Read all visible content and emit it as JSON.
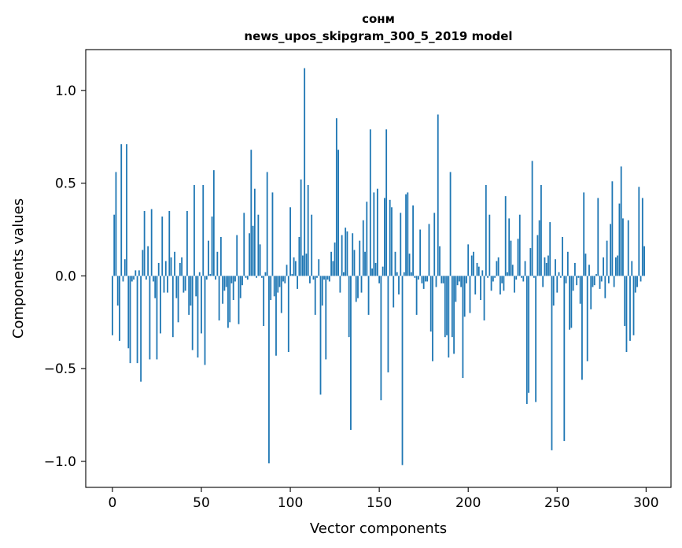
{
  "chart_data": {
    "type": "bar",
    "title": "сонм",
    "subtitle": "news_upos_skipgram_300_5_2019 model",
    "xlabel": "Vector components",
    "ylabel": "Components values",
    "xlim": [
      -15,
      314
    ],
    "ylim": [
      -1.14,
      1.22
    ],
    "xticks": [
      0,
      50,
      100,
      150,
      200,
      250,
      300
    ],
    "yticks": [
      -1.0,
      -0.5,
      0.0,
      0.5,
      1.0
    ],
    "ytick_labels": [
      "−1.0",
      "−0.5",
      "0.0",
      "0.5",
      "1.0"
    ],
    "grid": false,
    "color": "#1f77b4",
    "values": [
      -0.32,
      0.33,
      0.56,
      -0.16,
      -0.35,
      0.71,
      -0.03,
      0.09,
      0.71,
      -0.39,
      -0.47,
      -0.03,
      -0.02,
      0.03,
      -0.47,
      0.03,
      -0.57,
      0.14,
      0.35,
      -0.02,
      0.16,
      -0.45,
      0.36,
      -0.03,
      -0.12,
      -0.45,
      0.07,
      -0.31,
      0.32,
      -0.09,
      0.08,
      -0.09,
      0.35,
      0.1,
      -0.33,
      0.13,
      -0.12,
      -0.25,
      0.07,
      0.1,
      -0.09,
      -0.08,
      0.35,
      -0.21,
      -0.16,
      -0.4,
      0.49,
      -0.11,
      -0.44,
      0.02,
      -0.31,
      0.49,
      -0.48,
      -0.02,
      0.19,
      0.01,
      0.32,
      0.57,
      -0.02,
      0.13,
      -0.24,
      0.21,
      -0.15,
      -0.08,
      -0.06,
      -0.28,
      -0.25,
      -0.04,
      -0.13,
      -0.03,
      0.22,
      -0.26,
      -0.12,
      -0.05,
      0.34,
      -0.01,
      -0.02,
      0.23,
      0.68,
      0.27,
      0.47,
      -0.01,
      0.33,
      0.17,
      -0.01,
      -0.27,
      0.02,
      0.56,
      -1.01,
      -0.13,
      0.45,
      -0.11,
      -0.43,
      -0.09,
      -0.06,
      -0.2,
      -0.03,
      -0.04,
      0.06,
      -0.41,
      0.37,
      0.01,
      0.1,
      0.08,
      -0.07,
      0.21,
      0.52,
      0.11,
      1.12,
      0.12,
      0.49,
      -0.04,
      0.33,
      -0.02,
      -0.21,
      -0.01,
      0.09,
      -0.64,
      -0.16,
      -0.02,
      -0.45,
      -0.02,
      -0.03,
      0.13,
      0.08,
      0.18,
      0.85,
      0.68,
      -0.09,
      0.22,
      0.02,
      0.26,
      0.24,
      -0.33,
      -0.83,
      0.23,
      0.14,
      -0.14,
      -0.12,
      0.19,
      -0.09,
      0.3,
      0.13,
      0.4,
      -0.21,
      0.79,
      0.04,
      0.45,
      0.07,
      0.47,
      -0.04,
      -0.67,
      0.05,
      0.42,
      0.79,
      -0.52,
      0.41,
      0.37,
      -0.17,
      0.13,
      0.02,
      -0.1,
      0.34,
      -1.02,
      0.02,
      0.44,
      0.45,
      0.12,
      0.02,
      0.38,
      -0.01,
      -0.21,
      -0.02,
      0.25,
      -0.04,
      -0.07,
      -0.03,
      -0.03,
      0.28,
      -0.3,
      -0.46,
      0.34,
      -0.06,
      0.87,
      0.16,
      -0.04,
      -0.04,
      -0.33,
      -0.32,
      -0.44,
      0.56,
      -0.33,
      -0.42,
      -0.14,
      -0.05,
      -0.03,
      -0.06,
      -0.55,
      -0.22,
      -0.04,
      0.17,
      -0.2,
      0.11,
      0.13,
      -0.1,
      0.07,
      0.05,
      -0.13,
      0.03,
      -0.24,
      0.49,
      -0.01,
      0.33,
      -0.08,
      -0.03,
      -0.01,
      0.08,
      0.1,
      -0.1,
      -0.04,
      -0.08,
      0.43,
      0.02,
      0.31,
      0.19,
      0.06,
      -0.09,
      -0.02,
      0.2,
      0.33,
      -0.01,
      -0.03,
      0.08,
      -0.69,
      -0.63,
      0.15,
      0.62,
      -0.01,
      -0.68,
      0.22,
      0.3,
      0.49,
      -0.06,
      0.1,
      0.07,
      0.11,
      0.29,
      -0.94,
      -0.16,
      0.09,
      -0.09,
      0.02,
      -0.01,
      0.21,
      -0.89,
      -0.04,
      0.13,
      -0.29,
      -0.28,
      -0.08,
      0.07,
      -0.05,
      -0.01,
      -0.15,
      -0.56,
      0.45,
      0.12,
      -0.46,
      0.06,
      -0.18,
      -0.06,
      -0.05,
      0.01,
      0.42,
      -0.07,
      -0.03,
      0.1,
      -0.12,
      0.19,
      -0.04,
      0.28,
      0.51,
      -0.06,
      0.1,
      0.11,
      0.39,
      0.59,
      0.31,
      -0.27,
      -0.41,
      0.3,
      -0.35,
      0.08,
      -0.32,
      -0.09,
      -0.06,
      0.48,
      -0.03,
      0.42,
      0.16
    ]
  }
}
